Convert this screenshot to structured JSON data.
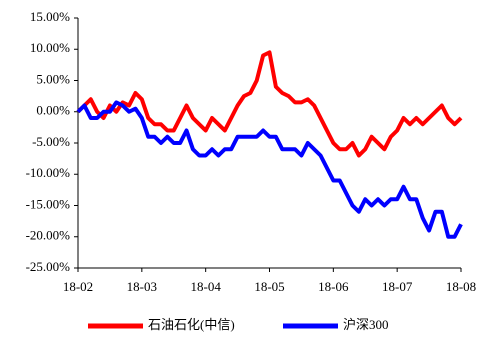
{
  "chart_data": {
    "type": "line",
    "x": [
      0,
      0.1,
      0.2,
      0.3,
      0.4,
      0.5,
      0.6,
      0.7,
      0.8,
      0.9,
      1,
      1.1,
      1.2,
      1.3,
      1.4,
      1.5,
      1.6,
      1.7,
      1.8,
      1.9,
      2,
      2.1,
      2.2,
      2.3,
      2.4,
      2.5,
      2.6,
      2.7,
      2.8,
      2.9,
      3,
      3.1,
      3.2,
      3.3,
      3.4,
      3.5,
      3.6,
      3.7,
      3.8,
      3.9,
      4,
      4.1,
      4.2,
      4.3,
      4.4,
      4.5,
      4.6,
      4.7,
      4.8,
      4.9,
      5,
      5.1,
      5.2,
      5.3,
      5.4,
      5.5,
      5.6,
      5.7,
      5.8,
      5.9,
      6
    ],
    "series": [
      {
        "name": "石油石化(中信)",
        "color": "#ff0000",
        "values": [
          0,
          1,
          2,
          0,
          -1,
          1,
          0,
          1.5,
          1,
          3,
          2,
          -1,
          -2,
          -2,
          -3,
          -3,
          -1,
          1,
          -1,
          -2,
          -3,
          -1,
          -2,
          -3,
          -1,
          1,
          2.5,
          3,
          5,
          9,
          9.5,
          4,
          3,
          2.5,
          1.5,
          1.5,
          2,
          1,
          -1,
          -3,
          -5,
          -6,
          -6,
          -5,
          -7,
          -6,
          -4,
          -5,
          -6,
          -4,
          -3,
          -1,
          -2,
          -1,
          -2,
          -1,
          0,
          1,
          -1,
          -2,
          -1
        ]
      },
      {
        "name": "沪深300",
        "color": "#0000ff",
        "values": [
          0,
          1,
          -1,
          -1,
          0,
          0,
          1.5,
          1,
          0,
          0.5,
          -1,
          -4,
          -4,
          -5,
          -4,
          -5,
          -5,
          -3,
          -6,
          -7,
          -7,
          -6,
          -7,
          -6,
          -6,
          -4,
          -4,
          -4,
          -4,
          -3,
          -4,
          -4,
          -6,
          -6,
          -6,
          -7,
          -5,
          -6,
          -7,
          -9,
          -11,
          -11,
          -13,
          -15,
          -16,
          -14,
          -15,
          -14,
          -15,
          -14,
          -14,
          -12,
          -14,
          -14,
          -17,
          -19,
          -16,
          -16,
          -20,
          -20,
          -18
        ]
      }
    ],
    "xlim": [
      0,
      6
    ],
    "xticks": [
      {
        "value": 0,
        "label": "18-02"
      },
      {
        "value": 1,
        "label": "18-03"
      },
      {
        "value": 2,
        "label": "18-04"
      },
      {
        "value": 3,
        "label": "18-05"
      },
      {
        "value": 4,
        "label": "18-06"
      },
      {
        "value": 5,
        "label": "18-07"
      },
      {
        "value": 6,
        "label": "18-08"
      }
    ],
    "ylim": [
      -25,
      15
    ],
    "yticks": [
      {
        "value": -25,
        "label": "-25.00%"
      },
      {
        "value": -20,
        "label": "-20.00%"
      },
      {
        "value": -15,
        "label": "-15.00%"
      },
      {
        "value": -10,
        "label": "-10.00%"
      },
      {
        "value": -5,
        "label": "-5.00%"
      },
      {
        "value": 0,
        "label": "0.00%"
      },
      {
        "value": 5,
        "label": "5.00%"
      },
      {
        "value": 10,
        "label": "10.00%"
      },
      {
        "value": 15,
        "label": "15.00%"
      }
    ],
    "legend": "bottom"
  }
}
